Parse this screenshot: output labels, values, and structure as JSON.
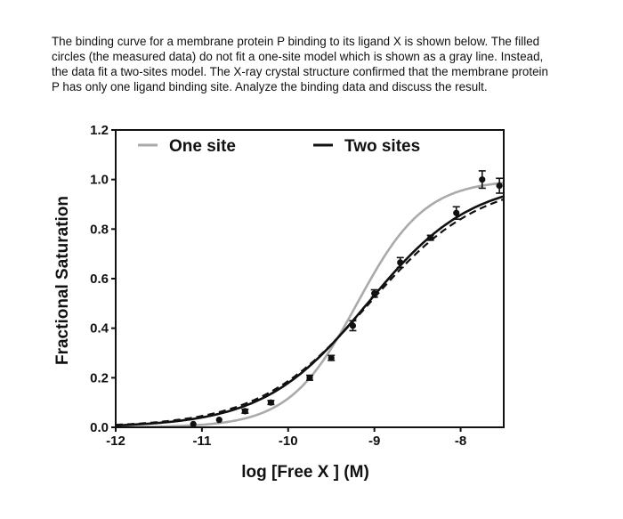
{
  "question": {
    "lines": [
      "The binding curve for a membrane protein P binding to its ligand X is shown below.  The filled",
      "circles  (the measured data) do not fit a one-site model which is shown as a gray line.  Instead,",
      "the data fit a two-sites model.  The X-ray crystal structure confirmed that the membrane protein",
      "P has only one ligand binding site.  Analyze the binding data and discuss the result."
    ]
  },
  "chart_data": {
    "type": "scatter",
    "title": "",
    "xlabel": "log [Free X ] (M)",
    "ylabel": "Fractional Saturation",
    "xlim": [
      -12,
      -7.5
    ],
    "ylim": [
      0,
      1.2
    ],
    "x_ticks": [
      -12,
      -11,
      -10,
      -9,
      -8
    ],
    "x_tick_labels": [
      "-12",
      "-11",
      "-10",
      "-9",
      "-8"
    ],
    "y_ticks": [
      0.0,
      0.2,
      0.4,
      0.6,
      0.8,
      1.0,
      1.2
    ],
    "y_tick_labels": [
      "0.0",
      "0.2",
      "0.4",
      "0.6",
      "0.8",
      "1.0",
      "1.2"
    ],
    "grid": false,
    "legend_position": "top",
    "legend": [
      {
        "name": "One site",
        "color": "#aaaaaa"
      },
      {
        "name": "Two sites",
        "color": "#111111"
      }
    ],
    "series": [
      {
        "name": "Measured data",
        "kind": "points",
        "color": "#111111",
        "x": [
          -11.1,
          -10.8,
          -10.5,
          -10.2,
          -9.75,
          -9.5,
          -9.25,
          -9.0,
          -8.7,
          -8.35,
          -8.05,
          -7.75,
          -7.55
        ],
        "y": [
          0.013,
          0.03,
          0.065,
          0.1,
          0.2,
          0.28,
          0.41,
          0.54,
          0.665,
          0.765,
          0.865,
          1.0,
          0.975
        ],
        "err": [
          0.005,
          0.005,
          0.008,
          0.008,
          0.01,
          0.01,
          0.02,
          0.015,
          0.02,
          0.01,
          0.025,
          0.035,
          0.03
        ]
      },
      {
        "name": "One site",
        "kind": "curve",
        "color": "#aaaaaa",
        "dash": "solid",
        "model": "hill",
        "logK": -9.2,
        "n": 1.1
      },
      {
        "name": "Two sites",
        "kind": "curve",
        "color": "#111111",
        "dash": "solid",
        "model": "hill",
        "logK": -9.08,
        "n": 0.72
      },
      {
        "name": "",
        "kind": "curve",
        "color": "#111111",
        "dash": "dashed",
        "model": "hill",
        "logK": -9.06,
        "n": 0.68
      }
    ]
  }
}
